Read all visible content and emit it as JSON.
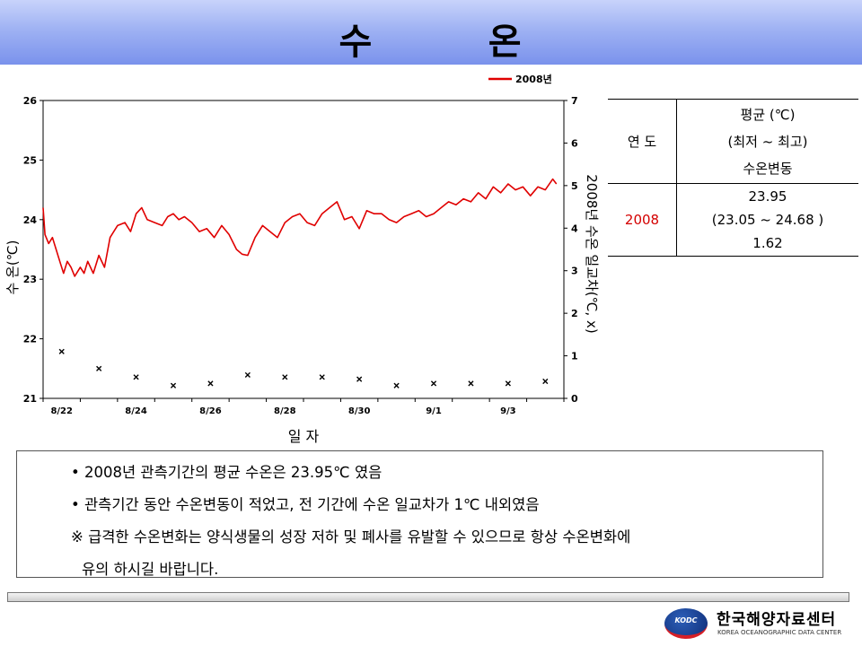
{
  "page": {
    "title": "수        온"
  },
  "chart_data": {
    "type": "line",
    "x_labels": [
      "8/22",
      "8/24",
      "8/26",
      "8/28",
      "8/30",
      "9/1",
      "9/3"
    ],
    "xlabel": "일  자",
    "ylabel_left": "수 온(℃)",
    "ylabel_right": "2008년 수온 일교차(℃, x)",
    "ylim_left": [
      21,
      26
    ],
    "ylim_right": [
      0,
      7
    ],
    "left_ticks": [
      "21",
      "22",
      "23",
      "24",
      "25",
      "26"
    ],
    "right_ticks": [
      "0",
      "1",
      "2",
      "3",
      "4",
      "5",
      "6",
      "7"
    ],
    "legend": {
      "label": "2008년",
      "color": "#e00000",
      "position": "top-right"
    },
    "series": [
      {
        "name": "2008년",
        "axis": "left",
        "color": "#e00000",
        "x": [
          0,
          0.05,
          0.15,
          0.25,
          0.35,
          0.45,
          0.55,
          0.65,
          0.75,
          0.85,
          1.0,
          1.1,
          1.2,
          1.35,
          1.5,
          1.65,
          1.8,
          2.0,
          2.2,
          2.35,
          2.5,
          2.65,
          2.8,
          3.0,
          3.2,
          3.35,
          3.5,
          3.65,
          3.8,
          4.0,
          4.2,
          4.4,
          4.6,
          4.8,
          5.0,
          5.2,
          5.35,
          5.5,
          5.7,
          5.9,
          6.1,
          6.3,
          6.5,
          6.7,
          6.9,
          7.1,
          7.3,
          7.5,
          7.7,
          7.9,
          8.1,
          8.3,
          8.5,
          8.7,
          8.9,
          9.1,
          9.3,
          9.5,
          9.7,
          9.9,
          10.1,
          10.3,
          10.5,
          10.7,
          10.9,
          11.1,
          11.3,
          11.5,
          11.7,
          11.9,
          12.1,
          12.3,
          12.5,
          12.7,
          12.9,
          13.1,
          13.3,
          13.5,
          13.7,
          13.8
        ],
        "values": [
          24.2,
          23.75,
          23.6,
          23.7,
          23.5,
          23.3,
          23.1,
          23.3,
          23.2,
          23.05,
          23.2,
          23.1,
          23.3,
          23.1,
          23.4,
          23.2,
          23.7,
          23.9,
          23.95,
          23.8,
          24.1,
          24.2,
          24.0,
          23.95,
          23.9,
          24.05,
          24.1,
          24.0,
          24.05,
          23.95,
          23.8,
          23.85,
          23.7,
          23.9,
          23.75,
          23.5,
          23.42,
          23.4,
          23.7,
          23.9,
          23.8,
          23.7,
          23.95,
          24.05,
          24.1,
          23.95,
          23.9,
          24.1,
          24.2,
          24.3,
          24.0,
          24.05,
          23.85,
          24.15,
          24.1,
          24.1,
          24.0,
          23.95,
          24.05,
          24.1,
          24.15,
          24.05,
          24.1,
          24.2,
          24.3,
          24.25,
          24.35,
          24.3,
          24.45,
          24.35,
          24.55,
          24.45,
          24.6,
          24.5,
          24.55,
          24.4,
          24.55,
          24.5,
          24.68,
          24.6
        ]
      },
      {
        "name": "일교차",
        "axis": "right",
        "marker": "x",
        "x": [
          0.5,
          1.5,
          2.5,
          3.5,
          4.5,
          5.5,
          6.5,
          7.5,
          8.5,
          9.5,
          10.5,
          11.5,
          12.5,
          13.5
        ],
        "values": [
          1.1,
          0.7,
          0.5,
          0.3,
          0.35,
          0.55,
          0.5,
          0.5,
          0.45,
          0.3,
          0.35,
          0.35,
          0.35,
          0.4
        ]
      }
    ]
  },
  "table": {
    "header": {
      "year_label": "연 도",
      "avg_label": "평균 (℃)",
      "range_label": "(최저 ~ 최고)",
      "var_label": "수온변동"
    },
    "row": {
      "year": "2008",
      "avg": "23.95",
      "range": "(23.05 ~ 24.68 )",
      "variation": "1.62"
    },
    "year_color": "#d40000"
  },
  "notes": {
    "line1": "• 2008년 관측기간의 평균 수온은 23.95℃ 였음",
    "line2": "• 관측기간 동안 수온변동이 적었고, 전 기간에 수온 일교차가 1℃ 내외였음",
    "line3": "※ 급격한 수온변화는 양식생물의 성장 저하 및 폐사를 유발할 수 있으므로 항상 수온변화에",
    "line4": "유의 하시길 바랍니다."
  },
  "logo": {
    "emblem_text": "KODC",
    "name_ko": "한국해양자료센터",
    "name_en": "KOREA OCEANOGRAPHIC DATA CENTER"
  }
}
